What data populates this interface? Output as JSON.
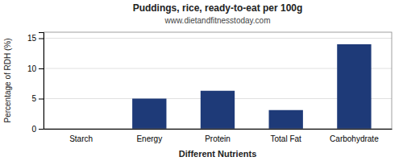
{
  "chart_data": {
    "type": "bar",
    "title": "Puddings, rice, ready-to-eat per 100g",
    "subtitle": "www.dietandfitnesstoday.com",
    "xlabel": "Different Nutrients",
    "ylabel": "Percentage of RDH (%)",
    "categories": [
      "Starch",
      "Energy",
      "Protein",
      "Total Fat",
      "Carbohydrate"
    ],
    "values": [
      0,
      5.0,
      6.3,
      3.1,
      14.0
    ],
    "color": "#1e3a78",
    "ylim": [
      0,
      16
    ],
    "yticks": [
      0,
      5,
      10,
      15
    ],
    "grid": true
  }
}
